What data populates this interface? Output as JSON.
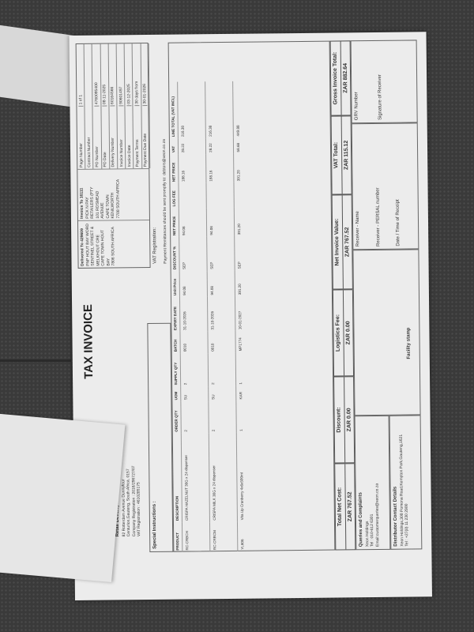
{
  "header": {
    "title": "TAX INVOICE"
  },
  "company": {
    "name": "Retail Development Solutions (PTY) Ltd",
    "lines": [
      "82 Rotterdam Avenue Dunnyfour",
      "Centurion,Gauteng, South Africa, 0157",
      "Company Registration : 2016/296727/07",
      "VAT Registration : 4610285175"
    ],
    "special_instructions": "Special Instructions :"
  },
  "delivered_to": {
    "label": "Delivered To 429609",
    "lines": [
      "PNP HOUT BAY WORD",
      "SENTINEL STREET &",
      "MELKHOUT CRE",
      "CAPE TOWN HOUT",
      "BAY",
      "7806 SOUTH AFRICA"
    ]
  },
  "invoice_to": {
    "label": "Invoice To 16111",
    "lines": [
      "PICK N PAY",
      "RETAILERS (PTY",
      "101 ROSMEAD",
      "AVENUE",
      "CAPE TOWN",
      "KENILWORTH",
      "7708 SOUTH AFRICA"
    ]
  },
  "invoice_info": [
    {
      "k": "Page Number",
      "v": "1 of 1"
    },
    {
      "k": "Contract Number",
      "v": ""
    },
    {
      "k": "PO Number",
      "v": "4760095400"
    },
    {
      "k": "PO Date",
      "v": "08-11-2025"
    },
    {
      "k": "Delivery Number",
      "v": "60164566"
    },
    {
      "k": "Invoice Number",
      "v": "90601497"
    },
    {
      "k": "Invoice Date",
      "v": "03-12-2025"
    },
    {
      "k": "Payment Terms",
      "v": "30 days from"
    },
    {
      "k": "Payment Due Date",
      "v": "30-01-2026"
    }
  ],
  "vat_registration": "VAT Registration:",
  "remittance": "Payment Remittances should be sent promptly to: debtors@xeon.co.za",
  "table": {
    "columns": [
      "PRODUCT",
      "DESCRIPTION",
      "ORDER QTY",
      "UOM",
      "SUPPLY QTY",
      "BATCH",
      "EXPIRY DATE",
      "Unit Price",
      "DISCOUNT %",
      "NET PRICE",
      "LOG FEE",
      "NET PRICE",
      "VAT",
      "LINE TOTAL (VAT INCL)"
    ],
    "rows": [
      [
        "RC-CRBCH",
        "CRISPA HAZELNUT 30G x 24 dispenser",
        "2",
        "SU",
        "2",
        "0010",
        "31-10-2026",
        "94.08",
        "SEP",
        "94.08",
        "",
        "188.16",
        "28.22",
        "216.38"
      ],
      [
        "RC-CRBCM",
        "CRISPA MILK 30G x 24 dispenser",
        "2",
        "SU",
        "2",
        "0010",
        "31-10-2026",
        "94.08",
        "SEP",
        "94.08",
        "",
        "188.16",
        "28.22",
        "216.38"
      ],
      [
        "YL606",
        "Vita Up Cranberry 4x6x500ml",
        "1",
        "KAR",
        "1",
        "MP1774",
        "10-01-2027",
        "391.20",
        "SEP",
        "391.20",
        "",
        "391.20",
        "58.68",
        "449.88"
      ]
    ]
  },
  "totals": [
    {
      "label": "Total Net Cost:",
      "value": "ZAR  767.52"
    },
    {
      "label": "Discount:",
      "value": "ZAR  0.00"
    },
    {
      "label": "Logistics Fee:",
      "value": "ZAR  0.00"
    },
    {
      "label": "Net Invoice Value:",
      "value": "ZAR  767.52"
    },
    {
      "label": "VAT Total:",
      "value": "ZAR  115.12"
    },
    {
      "label": "Gross Invoice Total:",
      "value": "ZAR  882.64"
    }
  ],
  "queries": {
    "title": "Queries and Complaints",
    "lines": [
      "Xeon Holdings",
      "Tel : 010-612 6301",
      "Email:customerqueries@xeon.co.za"
    ]
  },
  "distributor": {
    "title": "Distributor Contact Details",
    "lines": [
      "Xeon Holdings,308 Pomona Road,Kempton Park,Gauteng,1621",
      "Tel : +27(0) 11 230 2900"
    ]
  },
  "facility_stamp": "Facility stamp",
  "receiver": {
    "name": "Receiver - Name",
    "persal": "Receiver - PERSAL number",
    "date": "Date / Time of Receipt",
    "grv": "GRV Number",
    "signature": "Signature of Receiver"
  }
}
